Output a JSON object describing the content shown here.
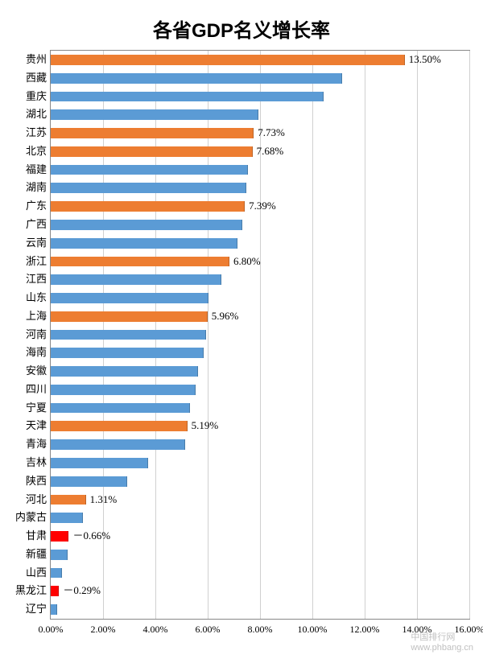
{
  "chart": {
    "type": "bar-horizontal",
    "title": "各省GDP名义增长率",
    "title_fontsize": 24,
    "background_color": "#ffffff",
    "plot_border_color": "#888888",
    "grid_color": "#d0d0d0",
    "x_min": 0.0,
    "x_max": 16.0,
    "x_tick_step": 2.0,
    "x_tick_format": "0.00%",
    "x_ticks": [
      "0.00%",
      "2.00%",
      "4.00%",
      "6.00%",
      "8.00%",
      "10.00%",
      "12.00%",
      "14.00%",
      "16.00%"
    ],
    "bar_height_ratio": 0.56,
    "colors": {
      "blue": "#5b9bd5",
      "orange": "#ed7d31",
      "red": "#ff0000"
    },
    "label_fontsize": 13,
    "tick_fontsize": 12,
    "categories": [
      {
        "name": "贵州",
        "value": 13.5,
        "color": "orange",
        "show_label": true,
        "label": "13.50%"
      },
      {
        "name": "西藏",
        "value": 11.1,
        "color": "blue",
        "show_label": false
      },
      {
        "name": "重庆",
        "value": 10.4,
        "color": "blue",
        "show_label": false
      },
      {
        "name": "湖北",
        "value": 7.9,
        "color": "blue",
        "show_label": false
      },
      {
        "name": "江苏",
        "value": 7.73,
        "color": "orange",
        "show_label": true,
        "label": "7.73%"
      },
      {
        "name": "北京",
        "value": 7.68,
        "color": "orange",
        "show_label": true,
        "label": "7.68%"
      },
      {
        "name": "福建",
        "value": 7.5,
        "color": "blue",
        "show_label": false
      },
      {
        "name": "湖南",
        "value": 7.45,
        "color": "blue",
        "show_label": false
      },
      {
        "name": "广东",
        "value": 7.39,
        "color": "orange",
        "show_label": true,
        "label": "7.39%"
      },
      {
        "name": "广西",
        "value": 7.3,
        "color": "blue",
        "show_label": false
      },
      {
        "name": "云南",
        "value": 7.1,
        "color": "blue",
        "show_label": false
      },
      {
        "name": "浙江",
        "value": 6.8,
        "color": "orange",
        "show_label": true,
        "label": "6.80%"
      },
      {
        "name": "江西",
        "value": 6.5,
        "color": "blue",
        "show_label": false
      },
      {
        "name": "山东",
        "value": 6.0,
        "color": "blue",
        "show_label": false
      },
      {
        "name": "上海",
        "value": 5.96,
        "color": "orange",
        "show_label": true,
        "label": "5.96%"
      },
      {
        "name": "河南",
        "value": 5.9,
        "color": "blue",
        "show_label": false
      },
      {
        "name": "海南",
        "value": 5.8,
        "color": "blue",
        "show_label": false
      },
      {
        "name": "安徽",
        "value": 5.6,
        "color": "blue",
        "show_label": false
      },
      {
        "name": "四川",
        "value": 5.5,
        "color": "blue",
        "show_label": false
      },
      {
        "name": "宁夏",
        "value": 5.3,
        "color": "blue",
        "show_label": false
      },
      {
        "name": "天津",
        "value": 5.19,
        "color": "orange",
        "show_label": true,
        "label": "5.19%"
      },
      {
        "name": "青海",
        "value": 5.1,
        "color": "blue",
        "show_label": false
      },
      {
        "name": "吉林",
        "value": 3.7,
        "color": "blue",
        "show_label": false
      },
      {
        "name": "陕西",
        "value": 2.9,
        "color": "blue",
        "show_label": false
      },
      {
        "name": "河北",
        "value": 1.31,
        "color": "orange",
        "show_label": true,
        "label": "1.31%"
      },
      {
        "name": "内蒙古",
        "value": 1.2,
        "color": "blue",
        "show_label": false
      },
      {
        "name": "甘肃",
        "value": -0.66,
        "color": "red",
        "show_label": true,
        "label": "－0.66%",
        "abs_value": 0.66
      },
      {
        "name": "新疆",
        "value": 0.6,
        "color": "blue",
        "show_label": false
      },
      {
        "name": "山西",
        "value": 0.4,
        "color": "blue",
        "show_label": false
      },
      {
        "name": "黑龙江",
        "value": -0.29,
        "color": "red",
        "show_label": true,
        "label": "－0.29%",
        "abs_value": 0.29
      },
      {
        "name": "辽宁",
        "value": 0.2,
        "color": "blue",
        "show_label": false
      }
    ],
    "watermark": "中国排行网\nwww.phbang.cn"
  }
}
